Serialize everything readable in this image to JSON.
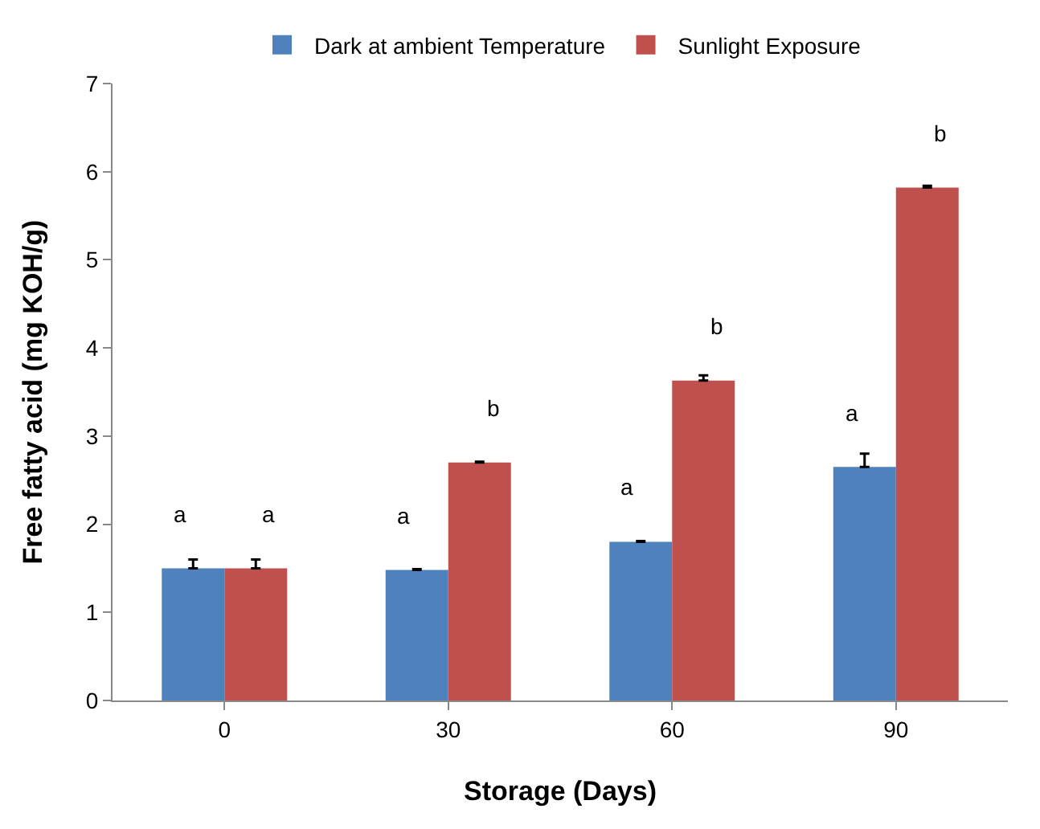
{
  "chart_data": {
    "type": "bar",
    "xlabel": "Storage (Days)",
    "ylabel": "Free fatty acid (mg KOH/g)",
    "categories": [
      "0",
      "30",
      "60",
      "90"
    ],
    "series": [
      {
        "name": "Dark at ambient Temperature",
        "color": "#4f81bd",
        "values": [
          1.5,
          1.48,
          1.8,
          2.65
        ],
        "errors": [
          0.1,
          0.01,
          0.01,
          0.15
        ]
      },
      {
        "name": "Sunlight Exposure",
        "color": "#c0504d",
        "values": [
          1.5,
          2.7,
          3.63,
          5.82
        ],
        "errors": [
          0.1,
          0.01,
          0.06,
          0.02
        ]
      }
    ],
    "ylim": [
      0,
      7
    ],
    "yticks": [
      0,
      1,
      2,
      3,
      4,
      5,
      6,
      7
    ],
    "grid": false,
    "legend": "top",
    "annotations": [
      {
        "text": "a",
        "x": "0",
        "y": 1.5
      },
      {
        "text": "a",
        "x": "0",
        "y": 1.5
      },
      {
        "text": "a",
        "x": "30",
        "y": 1.48
      },
      {
        "text": "b",
        "x": "30",
        "y": 2.7
      },
      {
        "text": "a",
        "x": "60",
        "y": 1.8
      },
      {
        "text": "b",
        "x": "60",
        "y": 3.63
      },
      {
        "text": "a",
        "x": "90",
        "y": 2.65
      },
      {
        "text": "b",
        "x": "90",
        "y": 5.82
      }
    ]
  }
}
